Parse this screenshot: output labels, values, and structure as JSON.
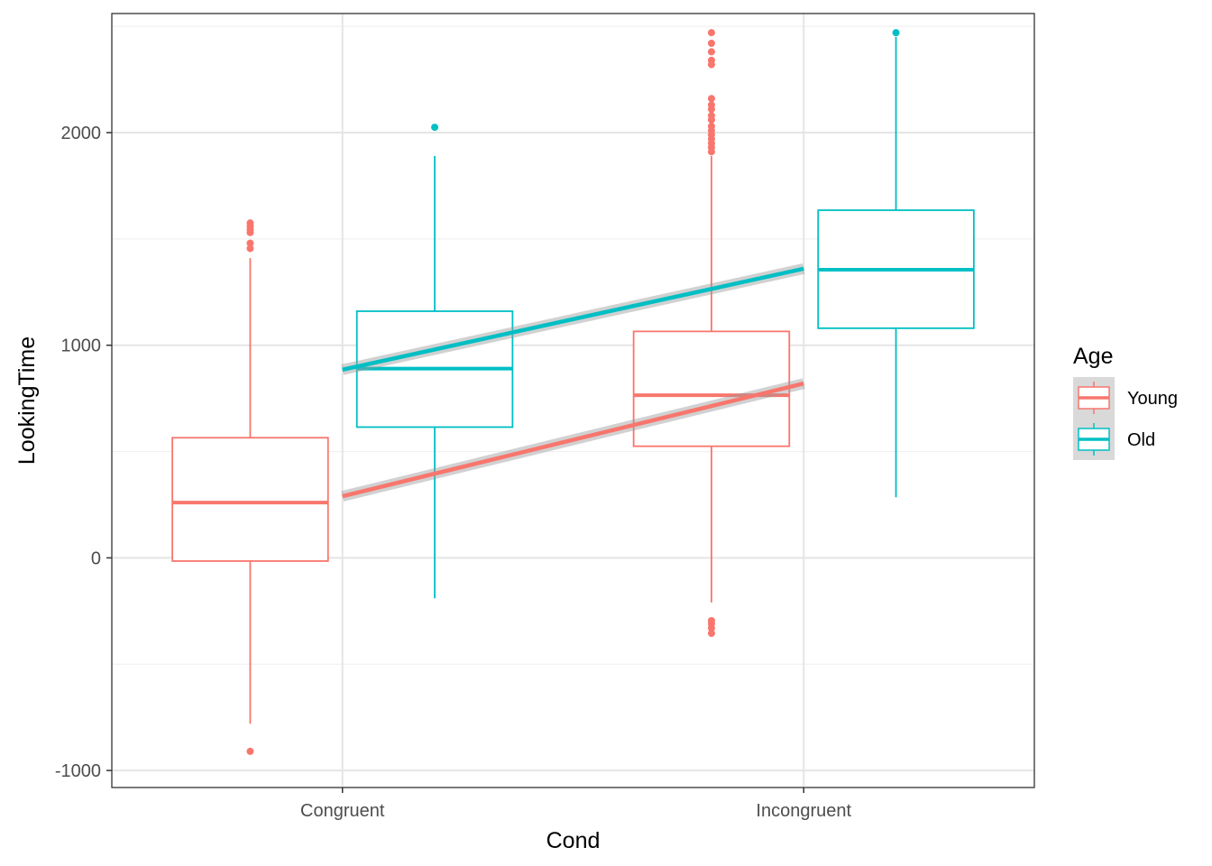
{
  "chart_data": {
    "type": "boxplot",
    "xlabel": "Cond",
    "ylabel": "LookingTime",
    "categories": [
      "Congruent",
      "Incongruent"
    ],
    "ylim": [
      -1080,
      2560
    ],
    "y_ticks": [
      -1000,
      0,
      1000,
      2000
    ],
    "y_tick_labels": [
      "-1000",
      "0",
      "1000",
      "2000"
    ],
    "grid": true,
    "legend": {
      "title": "Age",
      "position": "right"
    },
    "series": [
      {
        "name": "Young",
        "color": "#F8766D",
        "boxes": [
          {
            "category": "Congruent",
            "whisker_low": -780,
            "q1": -15,
            "median": 260,
            "q3": 565,
            "whisker_high": 1410,
            "outliers": [
              -910,
              1455,
              1480,
              1530,
              1545,
              1560,
              1575
            ]
          },
          {
            "category": "Incongruent",
            "whisker_low": -210,
            "q1": 525,
            "median": 765,
            "q3": 1065,
            "whisker_high": 1890,
            "outliers": [
              -355,
              -330,
              -310,
              -295,
              1910,
              1930,
              1950,
              1970,
              1990,
              2010,
              2030,
              2060,
              2080,
              2110,
              2130,
              2160,
              2320,
              2340,
              2380,
              2420,
              2470
            ]
          }
        ],
        "trend": {
          "x": [
            "Congruent",
            "Incongruent"
          ],
          "y": [
            290,
            820
          ]
        }
      },
      {
        "name": "Old",
        "color": "#00BFC4",
        "boxes": [
          {
            "category": "Congruent",
            "whisker_low": -190,
            "q1": 615,
            "median": 890,
            "q3": 1160,
            "whisker_high": 1890,
            "outliers": [
              2025
            ]
          },
          {
            "category": "Incongruent",
            "whisker_low": 285,
            "q1": 1080,
            "median": 1355,
            "q3": 1635,
            "whisker_high": 2450,
            "outliers": [
              2470
            ]
          }
        ],
        "trend": {
          "x": [
            "Congruent",
            "Incongruent"
          ],
          "y": [
            885,
            1360
          ]
        }
      }
    ]
  }
}
